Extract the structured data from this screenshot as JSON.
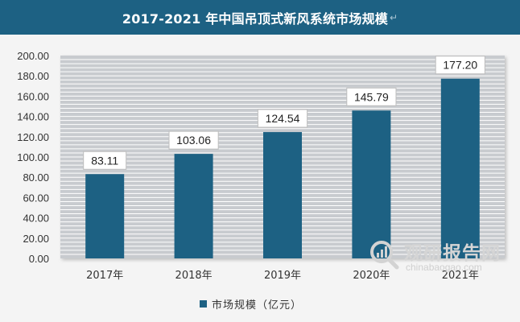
{
  "title": "2017-2021 年中国吊顶式新风系统市场规模",
  "title_mark": "↵",
  "chart_data": {
    "type": "bar",
    "categories": [
      "2017年",
      "2018年",
      "2019年",
      "2020年",
      "2021年"
    ],
    "series": [
      {
        "name": "市场规模（亿元）",
        "values": [
          83.11,
          103.06,
          124.54,
          145.79,
          177.2
        ]
      }
    ],
    "data_labels": [
      "83.11",
      "103.06",
      "124.54",
      "145.79",
      "177.20"
    ],
    "ylim": [
      0,
      200
    ],
    "y_ticks": [
      "0.00",
      "20.00",
      "40.00",
      "60.00",
      "80.00",
      "100.00",
      "120.00",
      "140.00",
      "160.00",
      "180.00",
      "200.00"
    ],
    "y_tick_values": [
      0,
      20,
      40,
      60,
      80,
      100,
      120,
      140,
      160,
      180,
      200
    ],
    "grid": true,
    "legend_position": "bottom",
    "bar_color": "#1d6183",
    "plot_background": "#c8cbcf",
    "grid_color": "#ffffff"
  },
  "legend": {
    "label": "市场规模（亿元）",
    "color": "#1d6183"
  },
  "watermark": {
    "name": "观研报告网",
    "site": "chinabaogao.com",
    "icon": "magnifier-logo-icon"
  }
}
